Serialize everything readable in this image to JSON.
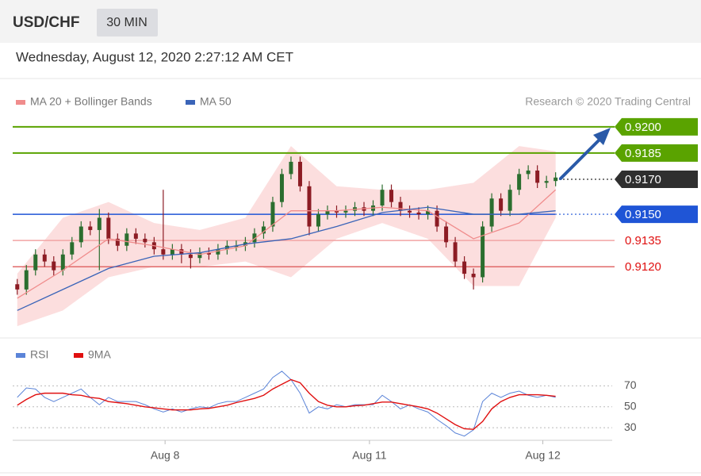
{
  "header": {
    "symbol": "USD/CHF",
    "interval": "30 MIN",
    "timestamp": "Wednesday, August 12, 2020 2:27:12 AM CET"
  },
  "chart_data": [
    {
      "type": "candlestick",
      "credit": "Research © 2020 Trading Central",
      "xlim": [
        -0.5,
        65.2
      ],
      "ylim": [
        0.9082,
        0.9209
      ],
      "candles": {
        "open": [
          0.911,
          0.9107,
          0.9118,
          0.9127,
          0.9123,
          0.9118,
          0.9127,
          0.9134,
          0.9143,
          0.9141,
          0.9148,
          0.9136,
          0.9132,
          0.9139,
          0.9136,
          0.9134,
          0.913,
          0.9127,
          0.913,
          0.9127,
          0.9125,
          0.9128,
          0.9127,
          0.913,
          0.9132,
          0.9132,
          0.9134,
          0.9139,
          0.9143,
          0.9157,
          0.9173,
          0.918,
          0.9166,
          0.9143,
          0.915,
          0.9152,
          0.9151,
          0.9152,
          0.9154,
          0.9152,
          0.9155,
          0.9164,
          0.9157,
          0.9152,
          0.9151,
          0.915,
          0.9152,
          0.9143,
          0.9134,
          0.9123,
          0.9116,
          0.9114,
          0.9143,
          0.9159,
          0.9152,
          0.9164,
          0.9173,
          0.9175,
          0.9168,
          0.9169
        ],
        "high": [
          0.9113,
          0.9121,
          0.913,
          0.913,
          0.9126,
          0.913,
          0.9137,
          0.9146,
          0.9146,
          0.9153,
          0.9151,
          0.9139,
          0.9142,
          0.9142,
          0.9139,
          0.9137,
          0.9164,
          0.9133,
          0.9133,
          0.913,
          0.9131,
          0.9131,
          0.9133,
          0.9135,
          0.9135,
          0.9137,
          0.9142,
          0.9146,
          0.916,
          0.9176,
          0.9183,
          0.9183,
          0.9169,
          0.9153,
          0.9155,
          0.9155,
          0.9155,
          0.9157,
          0.9157,
          0.9158,
          0.9167,
          0.9167,
          0.916,
          0.9155,
          0.9154,
          0.9155,
          0.9155,
          0.9146,
          0.9137,
          0.9126,
          0.9119,
          0.9146,
          0.9162,
          0.9162,
          0.9167,
          0.9176,
          0.9178,
          0.9178,
          0.9172,
          0.9174
        ],
        "low": [
          0.9104,
          0.9104,
          0.9115,
          0.912,
          0.9115,
          0.9115,
          0.9124,
          0.9131,
          0.9138,
          0.9118,
          0.9133,
          0.9129,
          0.9129,
          0.9133,
          0.9131,
          0.9127,
          0.9124,
          0.9124,
          0.9122,
          0.9119,
          0.9122,
          0.9124,
          0.9124,
          0.9127,
          0.9129,
          0.9129,
          0.9131,
          0.9136,
          0.914,
          0.9154,
          0.917,
          0.9163,
          0.9138,
          0.914,
          0.9147,
          0.9148,
          0.9148,
          0.9149,
          0.9149,
          0.9149,
          0.9152,
          0.9154,
          0.9149,
          0.9148,
          0.9147,
          0.9147,
          0.914,
          0.9131,
          0.912,
          0.9113,
          0.9107,
          0.9111,
          0.914,
          0.9149,
          0.9149,
          0.9161,
          0.917,
          0.9165,
          0.9165,
          0.9166
        ],
        "close": [
          0.9107,
          0.9118,
          0.9127,
          0.9123,
          0.9118,
          0.9127,
          0.9134,
          0.9143,
          0.9141,
          0.9148,
          0.9136,
          0.9132,
          0.9139,
          0.9136,
          0.9134,
          0.913,
          0.9127,
          0.913,
          0.9127,
          0.9125,
          0.9128,
          0.9127,
          0.913,
          0.9132,
          0.9132,
          0.9134,
          0.9139,
          0.9143,
          0.9157,
          0.9173,
          0.918,
          0.9166,
          0.9143,
          0.915,
          0.9152,
          0.9151,
          0.9152,
          0.9154,
          0.9152,
          0.9155,
          0.9164,
          0.9157,
          0.9152,
          0.9151,
          0.915,
          0.9152,
          0.9143,
          0.9134,
          0.9123,
          0.9116,
          0.9114,
          0.9143,
          0.9159,
          0.9152,
          0.9164,
          0.9173,
          0.9175,
          0.9168,
          0.9169,
          0.9171
        ],
        "up_color": "#2b6e2f",
        "down_color": "#8c1c24"
      },
      "series": [
        {
          "name": "MA 20 + Bollinger Bands",
          "color": "#f08c8c",
          "band_color": "#fbd3d3",
          "x": [
            0,
            5,
            10,
            15,
            20,
            25,
            30,
            35,
            40,
            45,
            50,
            55,
            59
          ],
          "values": [
            0.9102,
            0.9118,
            0.9136,
            0.9132,
            0.9127,
            0.9132,
            0.9152,
            0.9152,
            0.9154,
            0.9152,
            0.9136,
            0.9145,
            0.9164
          ],
          "upper": [
            0.9116,
            0.9148,
            0.9157,
            0.9145,
            0.9141,
            0.9148,
            0.9189,
            0.9166,
            0.9164,
            0.9164,
            0.9168,
            0.9189,
            0.9186
          ],
          "lower": [
            0.9086,
            0.9095,
            0.9114,
            0.912,
            0.912,
            0.9123,
            0.9114,
            0.9136,
            0.9145,
            0.9136,
            0.9109,
            0.9109,
            0.9148
          ]
        },
        {
          "name": "MA 50",
          "color": "#3a64b8",
          "x": [
            0,
            5,
            10,
            15,
            20,
            25,
            30,
            35,
            40,
            45,
            50,
            55,
            59
          ],
          "values": [
            0.9095,
            0.9107,
            0.9119,
            0.9126,
            0.9128,
            0.9133,
            0.9136,
            0.9143,
            0.9151,
            0.9154,
            0.915,
            0.915,
            0.9152
          ]
        }
      ],
      "levels": [
        {
          "price": {
            "value": 0.92,
            "label": "0.9200"
          },
          "color": "#5aa300",
          "style": "solid",
          "badge": true
        },
        {
          "price": 0.9185,
          "color": "#5aa300",
          "style": "solid",
          "badge": true
        },
        {
          "price": {
            "value": 0.917,
            "label": "0.9170"
          },
          "color": "#2f2f2f",
          "style": "dotted",
          "badge": true
        },
        {
          "price": {
            "value": 0.915,
            "label": "0.9150"
          },
          "color": "#1f55d6",
          "style": "solid",
          "badge": true
        },
        {
          "price": 0.9135,
          "color": "#f2a4a4",
          "style": "solid",
          "badge": false
        },
        {
          "price": {
            "value": 0.912,
            "label": "0.9120"
          },
          "color": "#e06a6a",
          "style": "solid",
          "badge": false
        }
      ]
    },
    {
      "type": "line",
      "xlim": [
        -0.5,
        65.2
      ],
      "ylim": [
        18,
        90
      ],
      "yticks": [
        70,
        50,
        30
      ],
      "grid": true,
      "xticks": [
        {
          "value": 16.2,
          "label": "Aug 8"
        },
        {
          "value": 38.6,
          "label": "Aug 11"
        },
        {
          "value": 57.6,
          "label": "Aug 12"
        }
      ],
      "series": [
        {
          "name": "RSI",
          "color": "#5b84d8",
          "values": [
            59,
            68,
            67,
            59,
            55,
            59,
            63,
            67,
            59,
            52,
            59,
            55,
            55,
            55,
            52,
            48,
            45,
            48,
            45,
            48,
            50,
            49,
            53,
            55,
            55,
            59,
            63,
            67,
            78,
            84,
            76,
            63,
            44,
            50,
            48,
            52,
            50,
            52,
            52,
            52,
            61,
            55,
            48,
            52,
            48,
            45,
            38,
            32,
            25,
            22,
            28,
            55,
            63,
            59,
            63,
            65,
            61,
            59,
            61,
            59
          ]
        },
        {
          "name": "9MA",
          "color": "#e01010",
          "values": [
            51.5,
            57,
            61.5,
            63,
            63,
            63,
            61.5,
            61,
            59,
            58,
            55,
            54,
            53,
            51.5,
            50,
            49,
            48,
            47,
            47,
            47,
            48,
            48.5,
            50,
            51.5,
            54,
            56,
            58,
            61,
            67,
            71.5,
            76,
            73,
            63,
            55,
            51.5,
            50,
            50,
            51,
            51.5,
            53,
            54.5,
            54.5,
            53,
            51.5,
            50,
            48,
            44,
            38.5,
            33,
            29,
            28.5,
            36,
            48,
            55,
            59,
            61.5,
            61.5,
            61.5,
            61,
            60
          ]
        }
      ]
    }
  ]
}
